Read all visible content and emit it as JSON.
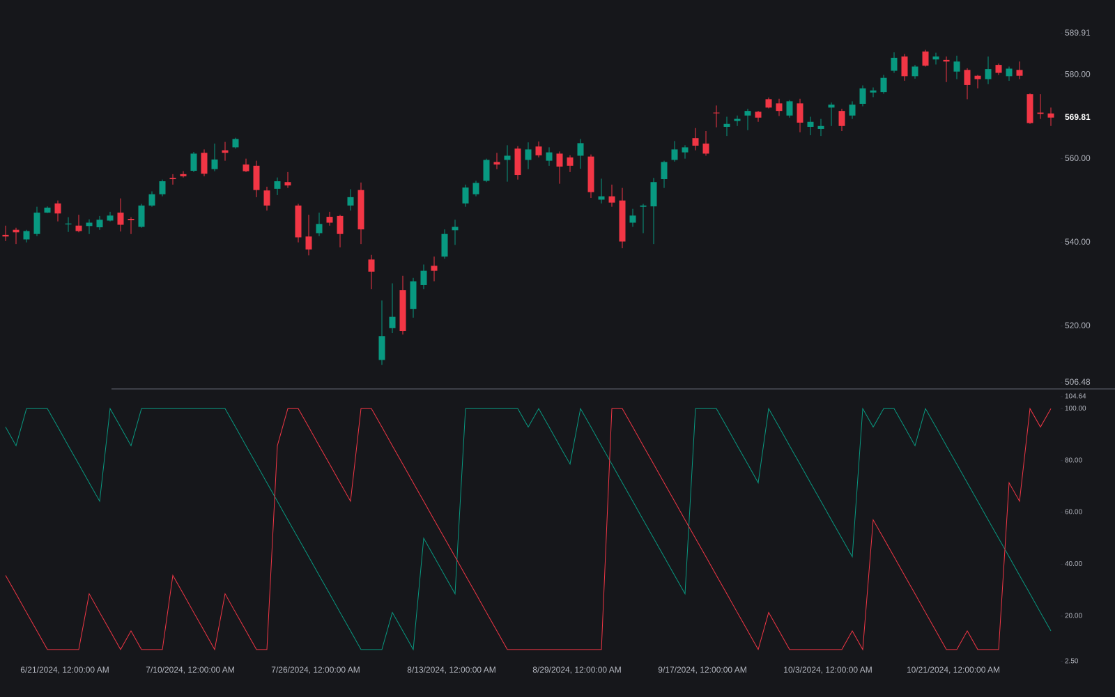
{
  "chart_data": [
    {
      "type": "candlestick",
      "categories": [
        null,
        null,
        null,
        null,
        null,
        "6/21/2024, 12:00:00 AM",
        null,
        null,
        null,
        null,
        null,
        null,
        null,
        null,
        null,
        null,
        null,
        "7/10/2024, 12:00:00 AM",
        null,
        null,
        null,
        null,
        null,
        null,
        null,
        null,
        null,
        null,
        null,
        "7/26/2024, 12:00:00 AM",
        null,
        null,
        null,
        null,
        null,
        null,
        null,
        null,
        null,
        null,
        null,
        null,
        "8/13/2024, 12:00:00 AM",
        null,
        null,
        null,
        null,
        null,
        null,
        null,
        null,
        null,
        null,
        null,
        "8/29/2024, 12:00:00 AM",
        null,
        null,
        null,
        null,
        null,
        null,
        null,
        null,
        null,
        null,
        null,
        "9/17/2024, 12:00:00 AM",
        null,
        null,
        null,
        null,
        null,
        null,
        null,
        null,
        null,
        null,
        null,
        "10/3/2024, 12:00:00 AM",
        null,
        null,
        null,
        null,
        null,
        null,
        null,
        null,
        null,
        null,
        null,
        "10/21/2024, 12:00:00 AM",
        null,
        null,
        null,
        null,
        null,
        null,
        null,
        null,
        null,
        null
      ],
      "open": [
        541.8,
        543,
        540.7,
        542,
        547.1,
        549.3,
        544.3,
        544,
        543.9,
        543.6,
        545.2,
        547.1,
        545.6,
        543.7,
        548.8,
        551.5,
        555.4,
        556.3,
        557.1,
        561.4,
        557.5,
        562,
        562.7,
        558.6,
        558.3,
        552.4,
        552.8,
        554.4,
        548.8,
        541.4,
        542.2,
        546.1,
        546.3,
        548.8,
        552.5,
        535.9,
        511.9,
        519.5,
        528.6,
        524.1,
        529.8,
        534.4,
        536.6,
        542.9,
        549.3,
        551.5,
        554.7,
        559.2,
        559.7,
        562.4,
        559.7,
        562.9,
        559.5,
        561.2,
        560.3,
        560.7,
        560.5,
        550.2,
        551,
        550,
        544.7,
        548.5,
        548.6,
        555.1,
        559.7,
        561.5,
        564.9,
        563.6,
        571,
        567.6,
        569,
        570.3,
        571.2,
        574.2,
        573.2,
        570.3,
        573.2,
        567.6,
        567.1,
        572.2,
        571.4,
        570.3,
        573.1,
        575.8,
        575.9,
        581,
        584.4,
        579.7,
        585.6,
        583.7,
        583.6,
        580.8,
        581.2,
        579.8,
        579,
        582.4,
        579.7,
        581.2,
        575.4,
        571,
        570.8
      ],
      "high": [
        544,
        543.5,
        543,
        548.5,
        548.6,
        550,
        546,
        546.6,
        545.5,
        546.3,
        547.3,
        550.5,
        546,
        549.2,
        552.2,
        555,
        556.3,
        557,
        561.6,
        562.2,
        563.6,
        564,
        565,
        560,
        559.5,
        553.3,
        555.5,
        556.8,
        549.2,
        546.6,
        547.1,
        547.3,
        546.6,
        552.7,
        554.3,
        537,
        526.1,
        530.2,
        532,
        531.5,
        534.7,
        536.6,
        543.1,
        545.4,
        553.8,
        554.7,
        560,
        561.4,
        563.2,
        563,
        563.9,
        564.1,
        562.7,
        561.7,
        560.8,
        564.7,
        561,
        555.2,
        553.8,
        553,
        548,
        549.2,
        555.4,
        559.5,
        564.2,
        563.2,
        567.3,
        566.6,
        572.7,
        570,
        570.3,
        571.9,
        571.4,
        574.6,
        574.3,
        574,
        574.3,
        570,
        569.5,
        573.4,
        571.9,
        573.7,
        577.5,
        577,
        580,
        585.4,
        585,
        582.4,
        586,
        585.3,
        584.4,
        584.6,
        581.6,
        580,
        584.4,
        582.7,
        582,
        583.2,
        575.6,
        575.4,
        572.2
      ],
      "low": [
        540.3,
        539.6,
        540,
        541.5,
        547,
        545,
        542.5,
        542.4,
        542,
        543,
        545,
        542.6,
        542,
        543.5,
        548.5,
        551,
        553.8,
        555.5,
        556.8,
        555.8,
        557,
        559.5,
        562.4,
        556.8,
        550.8,
        547.6,
        551.3,
        553,
        540,
        536.9,
        541.5,
        544,
        538.8,
        547.6,
        539.6,
        528.8,
        510.7,
        518.3,
        518,
        522,
        528.8,
        530.7,
        536.1,
        539.4,
        548.5,
        551,
        554.4,
        557.5,
        554.5,
        555,
        557.5,
        560.3,
        558.3,
        554,
        556.8,
        557.6,
        550.6,
        549.3,
        548.5,
        538.6,
        543.7,
        542.2,
        539.6,
        553,
        559.3,
        560,
        562,
        560.7,
        567.5,
        565.4,
        567.8,
        566.8,
        568.8,
        572,
        570.2,
        569.8,
        566.3,
        565.6,
        565.4,
        567.8,
        566.6,
        569.5,
        572.5,
        574.7,
        575.5,
        580.5,
        578.6,
        579.1,
        582,
        582.5,
        578.3,
        579,
        574.2,
        576.8,
        577.8,
        580,
        578.6,
        579,
        568.3,
        569.5,
        567.8
      ],
      "close": [
        541.4,
        542.4,
        542.7,
        547.1,
        548.3,
        546.9,
        544.5,
        542.7,
        544.7,
        545.4,
        546.4,
        544.2,
        545.3,
        548.8,
        551.5,
        554.6,
        555.1,
        555.8,
        561.2,
        556.4,
        559.8,
        561.4,
        564.7,
        557,
        552.5,
        548.8,
        554.6,
        553.6,
        541.2,
        538.3,
        544.4,
        544.7,
        542,
        550.8,
        543.1,
        533,
        517.6,
        522.2,
        518.8,
        530.7,
        533.2,
        533.2,
        542,
        543.7,
        553.1,
        554.2,
        559.7,
        558.6,
        560.7,
        556.1,
        562.2,
        560.8,
        561.5,
        558.1,
        558.3,
        563.7,
        552,
        551,
        549.5,
        540.2,
        546.4,
        548.8,
        554.4,
        559.2,
        562.2,
        562.7,
        563.1,
        561.2,
        570.9,
        568.3,
        569.5,
        571.4,
        569.8,
        572.2,
        571.4,
        573.7,
        568.6,
        568.8,
        567.8,
        572.9,
        567.8,
        572.9,
        576.8,
        576.3,
        579.3,
        584.1,
        579.7,
        582,
        582.2,
        584.4,
        583.2,
        583.2,
        577.6,
        579,
        581.4,
        580.5,
        581.5,
        579.8,
        568.5,
        570.7,
        569.81
      ],
      "up_color": "#089981",
      "down_color": "#f23645",
      "ylim": [
        506.48,
        589.91
      ],
      "yticks": [
        506.48,
        {
          "value": 520,
          "label": "520.00"
        },
        {
          "value": 540,
          "label": "540.00"
        },
        {
          "value": 560,
          "label": "560.00"
        },
        {
          "value": 580,
          "label": "580.00"
        },
        589.91
      ]
    },
    {
      "type": "line",
      "series": [
        {
          "color": "#089981",
          "values": [
            92.9,
            85.7,
            100,
            100,
            100,
            92.9,
            85.7,
            78.6,
            71.4,
            64.3,
            100,
            92.9,
            85.7,
            100,
            100,
            100,
            100,
            100,
            100,
            100,
            100,
            100,
            92.9,
            85.7,
            78.6,
            71.4,
            64.3,
            57.1,
            50,
            42.9,
            35.7,
            28.6,
            21.4,
            14.3,
            7.1,
            7.1,
            7.1,
            21.4,
            14.3,
            7.1,
            50,
            42.9,
            35.7,
            28.6,
            100,
            100,
            100,
            100,
            100,
            100,
            92.9,
            100,
            92.9,
            85.7,
            78.6,
            100,
            92.9,
            85.7,
            78.6,
            71.4,
            64.3,
            57.1,
            50,
            42.9,
            35.7,
            28.6,
            100,
            100,
            100,
            92.9,
            85.7,
            78.6,
            71.4,
            100,
            92.9,
            85.7,
            78.6,
            71.4,
            64.3,
            57.1,
            50,
            42.9,
            100,
            92.9,
            100,
            100,
            92.9,
            85.7,
            100,
            92.9,
            85.7,
            78.6,
            71.4,
            64.3,
            57.1,
            50,
            42.9,
            35.7,
            28.6,
            21.4,
            14.3
          ]
        },
        {
          "color": "#f23645",
          "values": [
            35.7,
            28.6,
            21.4,
            14.3,
            7.1,
            7.1,
            7.1,
            7.1,
            28.6,
            21.4,
            14.3,
            7.1,
            14.3,
            7.1,
            7.1,
            7.1,
            35.7,
            28.6,
            21.4,
            14.3,
            7.1,
            28.6,
            21.4,
            14.3,
            7.1,
            7.1,
            85.7,
            100,
            100,
            92.9,
            85.7,
            78.6,
            71.4,
            64.3,
            100,
            100,
            92.9,
            85.7,
            78.6,
            71.4,
            64.3,
            57.1,
            50,
            42.9,
            35.7,
            28.6,
            21.4,
            14.3,
            7.1,
            7.1,
            7.1,
            7.1,
            7.1,
            7.1,
            7.1,
            7.1,
            7.1,
            7.1,
            100,
            100,
            92.9,
            85.7,
            78.6,
            71.4,
            64.3,
            57.1,
            50,
            42.9,
            35.7,
            28.6,
            21.4,
            14.3,
            7.1,
            21.4,
            14.3,
            7.1,
            7.1,
            7.1,
            7.1,
            7.1,
            7.1,
            14.3,
            7.1,
            57.1,
            50,
            42.9,
            35.7,
            28.6,
            21.4,
            14.3,
            7.1,
            7.1,
            14.3,
            7.1,
            7.1,
            7.1,
            71.4,
            64.3,
            100,
            92.9,
            100
          ]
        }
      ],
      "ylim": [
        2.5,
        104.64
      ],
      "yticks": [
        {
          "value": 2.5,
          "label": "2.50"
        },
        {
          "value": 20,
          "label": "20.00"
        },
        {
          "value": 40,
          "label": "40.00"
        },
        {
          "value": 60,
          "label": "60.00"
        },
        {
          "value": 80,
          "label": "80.00"
        },
        {
          "value": 100,
          "label": "100.00"
        },
        104.64
      ]
    }
  ]
}
